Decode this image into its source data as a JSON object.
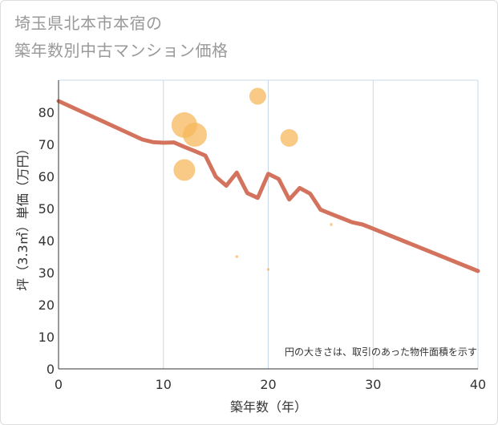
{
  "title_lines": [
    "埼玉県北本市本宿の",
    "築年数別中古マンション価格"
  ],
  "chart_data": {
    "type": "scatter",
    "title": "埼玉県北本市本宿の築年数別中古マンション価格",
    "xlabel": "築年数（年）",
    "ylabel": "坪（3.3㎡）単価（万円）",
    "xlim": [
      0,
      40
    ],
    "ylim": [
      0,
      90
    ],
    "xticks": [
      0,
      10,
      20,
      30,
      40
    ],
    "yticks": [
      0,
      10,
      20,
      30,
      40,
      50,
      60,
      70,
      80
    ],
    "note": "円の大きさは、取引のあった物件面積を示す",
    "colors": {
      "line": "#d4735d",
      "bubble": "#f5b85c",
      "grid": "#c9d9e8",
      "axis": "#333333"
    },
    "trend_line": {
      "x": [
        0,
        2,
        4,
        6,
        8,
        9,
        10,
        11,
        12,
        13,
        14,
        15,
        16,
        17,
        18,
        19,
        20,
        21,
        22,
        23,
        24,
        25,
        26,
        27,
        28,
        29,
        30,
        35,
        40
      ],
      "y": [
        83.5,
        80.5,
        77.5,
        74.5,
        71.5,
        70.7,
        70.5,
        70.6,
        69.2,
        67.9,
        66.5,
        59.9,
        57.1,
        61.2,
        54.8,
        53.3,
        60.8,
        59.2,
        52.8,
        56.4,
        54.6,
        49.6,
        48.3,
        47.0,
        45.7,
        45.0,
        43.7,
        37.1,
        30.5
      ]
    },
    "bubbles": [
      {
        "x": 12,
        "y": 76,
        "size": 3.2
      },
      {
        "x": 13,
        "y": 73,
        "size": 3.0
      },
      {
        "x": 12,
        "y": 62,
        "size": 2.7
      },
      {
        "x": 19,
        "y": 85,
        "size": 2.1
      },
      {
        "x": 22,
        "y": 72,
        "size": 2.2
      },
      {
        "x": 17,
        "y": 35,
        "size": 0.35
      },
      {
        "x": 20,
        "y": 31,
        "size": 0.35
      },
      {
        "x": 26,
        "y": 45,
        "size": 0.35
      }
    ]
  }
}
